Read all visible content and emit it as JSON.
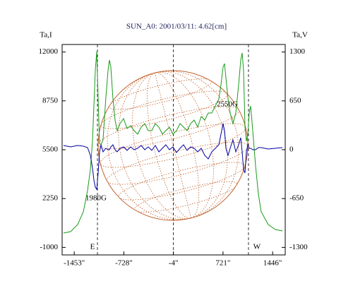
{
  "chart_data": {
    "type": "line",
    "title": "SUN_A0: 2001/03/11: 4.62[cm]",
    "ylabel": "Ta,I",
    "y2label": "Ta,V",
    "xlim": [
      -1630,
      1630
    ],
    "xticks": [
      {
        "value": -1453,
        "label": "-1453\""
      },
      {
        "value": -728,
        "label": "-728\""
      },
      {
        "value": -4,
        "label": "-4\""
      },
      {
        "value": 721,
        "label": "721\""
      },
      {
        "value": 1446,
        "label": "1446\""
      }
    ],
    "ylim": [
      -1500,
      12500
    ],
    "yticks": [
      -1000,
      2250,
      5500,
      8750,
      12000
    ],
    "y2lim": [
      -1400,
      1400
    ],
    "y2ticks": [
      -1300,
      -650,
      0,
      650,
      1300
    ],
    "reference_lines_x": [
      -1114,
      -4,
      1093
    ],
    "annotations": [
      "1980G",
      "2550G",
      "E",
      "W"
    ],
    "x": [
      -1609,
      -1506,
      -1403,
      -1321,
      -1259,
      -1217,
      -1186,
      -1166,
      -1145,
      -1124,
      -1104,
      -1083,
      -1063,
      -1032,
      -992,
      -959,
      -939,
      -918,
      -887,
      -856,
      -825,
      -784,
      -732,
      -681,
      -629,
      -578,
      -526,
      -475,
      -423,
      -371,
      -320,
      -268,
      -217,
      -165,
      -114,
      -62,
      -10,
      41,
      93,
      144,
      196,
      248,
      299,
      351,
      402,
      454,
      505,
      557,
      609,
      660,
      691,
      722,
      743,
      763,
      794,
      825,
      866,
      908,
      949,
      980,
      1001,
      1021,
      1042,
      1063,
      1083,
      1104,
      1124,
      1155,
      1197,
      1238,
      1279,
      1382,
      1485,
      1589
    ],
    "series": [
      {
        "name": "Ta,I",
        "color": "#1a9a1a",
        "values": [
          -44,
          50,
          520,
          1366,
          2775,
          4185,
          6064,
          8413,
          10762,
          12030,
          8883,
          5923,
          5829,
          6158,
          8883,
          10762,
          11466,
          10997,
          8883,
          7473,
          6768,
          7238,
          7567,
          6909,
          7097,
          6768,
          6534,
          7003,
          7238,
          6768,
          6768,
          7238,
          7003,
          6534,
          6768,
          7003,
          6534,
          6768,
          7238,
          7003,
          6768,
          7238,
          7473,
          7003,
          7708,
          7473,
          7943,
          7943,
          8413,
          8883,
          9822,
          10997,
          11232,
          10292,
          8883,
          7943,
          7238,
          7943,
          9822,
          11466,
          11936,
          10762,
          7003,
          6064,
          6534,
          7943,
          8413,
          6768,
          4419,
          2540,
          1366,
          520,
          191,
          97
        ]
      },
      {
        "name": "Ta,V",
        "color": "#0000a0",
        "axis": "y2",
        "values": [
          56,
          38,
          56,
          47,
          28,
          -75,
          -244,
          -404,
          -498,
          -526,
          -310,
          -28,
          66,
          -28,
          19,
          0,
          0,
          38,
          66,
          0,
          -28,
          19,
          38,
          -9,
          38,
          0,
          19,
          56,
          0,
          38,
          -9,
          56,
          -28,
          19,
          66,
          0,
          38,
          -38,
          19,
          66,
          -9,
          38,
          19,
          -28,
          19,
          -75,
          -122,
          -28,
          19,
          66,
          207,
          348,
          254,
          19,
          -75,
          19,
          132,
          -28,
          66,
          160,
          -28,
          -263,
          -310,
          -28,
          66,
          19,
          19,
          0,
          0,
          28,
          28,
          9,
          19,
          28
        ]
      }
    ]
  }
}
